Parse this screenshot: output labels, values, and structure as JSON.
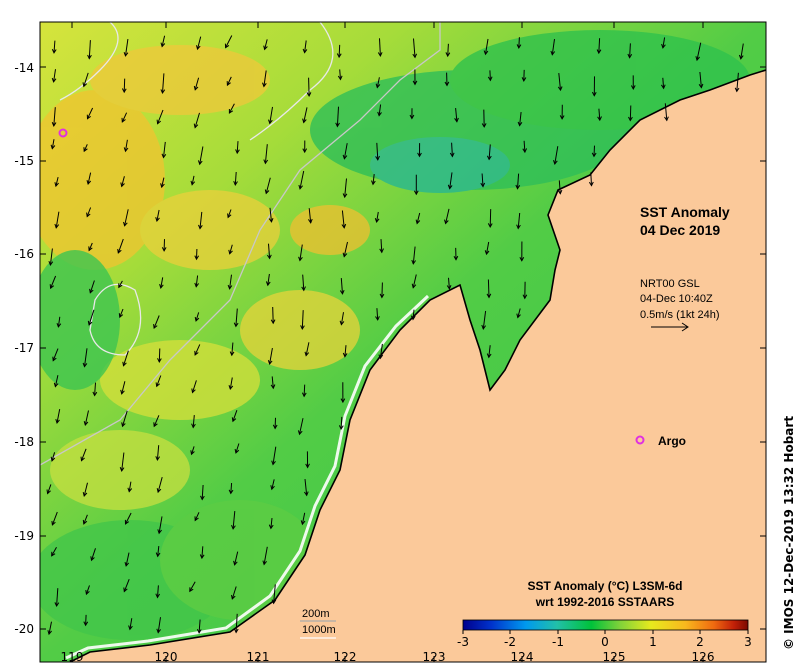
{
  "map": {
    "title_line1": "SST Anomaly",
    "title_line2": "04 Dec 2019",
    "current_info": {
      "line1": "NRT00 GSL",
      "line2": "04-Dec 10:40Z",
      "line3": "0.5m/s (1kt 24h)"
    },
    "argo_label": "Argo",
    "depth_labels": [
      "200m",
      "1000m"
    ],
    "colorbar": {
      "title_line1": "SST Anomaly (°C) L3SM-6d",
      "title_line2": "wrt 1992-2016 SSTAARS",
      "ticks": [
        "-3",
        "-2",
        "-1",
        "0",
        "1",
        "2",
        "3"
      ],
      "colors": [
        "#00008c",
        "#0033cc",
        "#0099ee",
        "#22c0a8",
        "#00c23a",
        "#7fd23a",
        "#e7ea1e",
        "#f8b81e",
        "#ef6a10",
        "#c22008",
        "#7a0a00"
      ]
    },
    "lon_ticks": [
      "119",
      "120",
      "121",
      "122",
      "123",
      "124",
      "125",
      "126"
    ],
    "lat_ticks": [
      "-14",
      "-15",
      "-16",
      "-17",
      "-18",
      "-19",
      "-20"
    ],
    "credit": "© IMOS 12-Dec-2019 13:32 Hobart",
    "colors": {
      "land": "#fbc99a",
      "ocean_green": "#33c84a",
      "ocean_yellow": "#c8e03a",
      "ocean_orange": "#f2c430",
      "ocean_cyan": "#22b39a",
      "argo": "#e030e0"
    }
  }
}
